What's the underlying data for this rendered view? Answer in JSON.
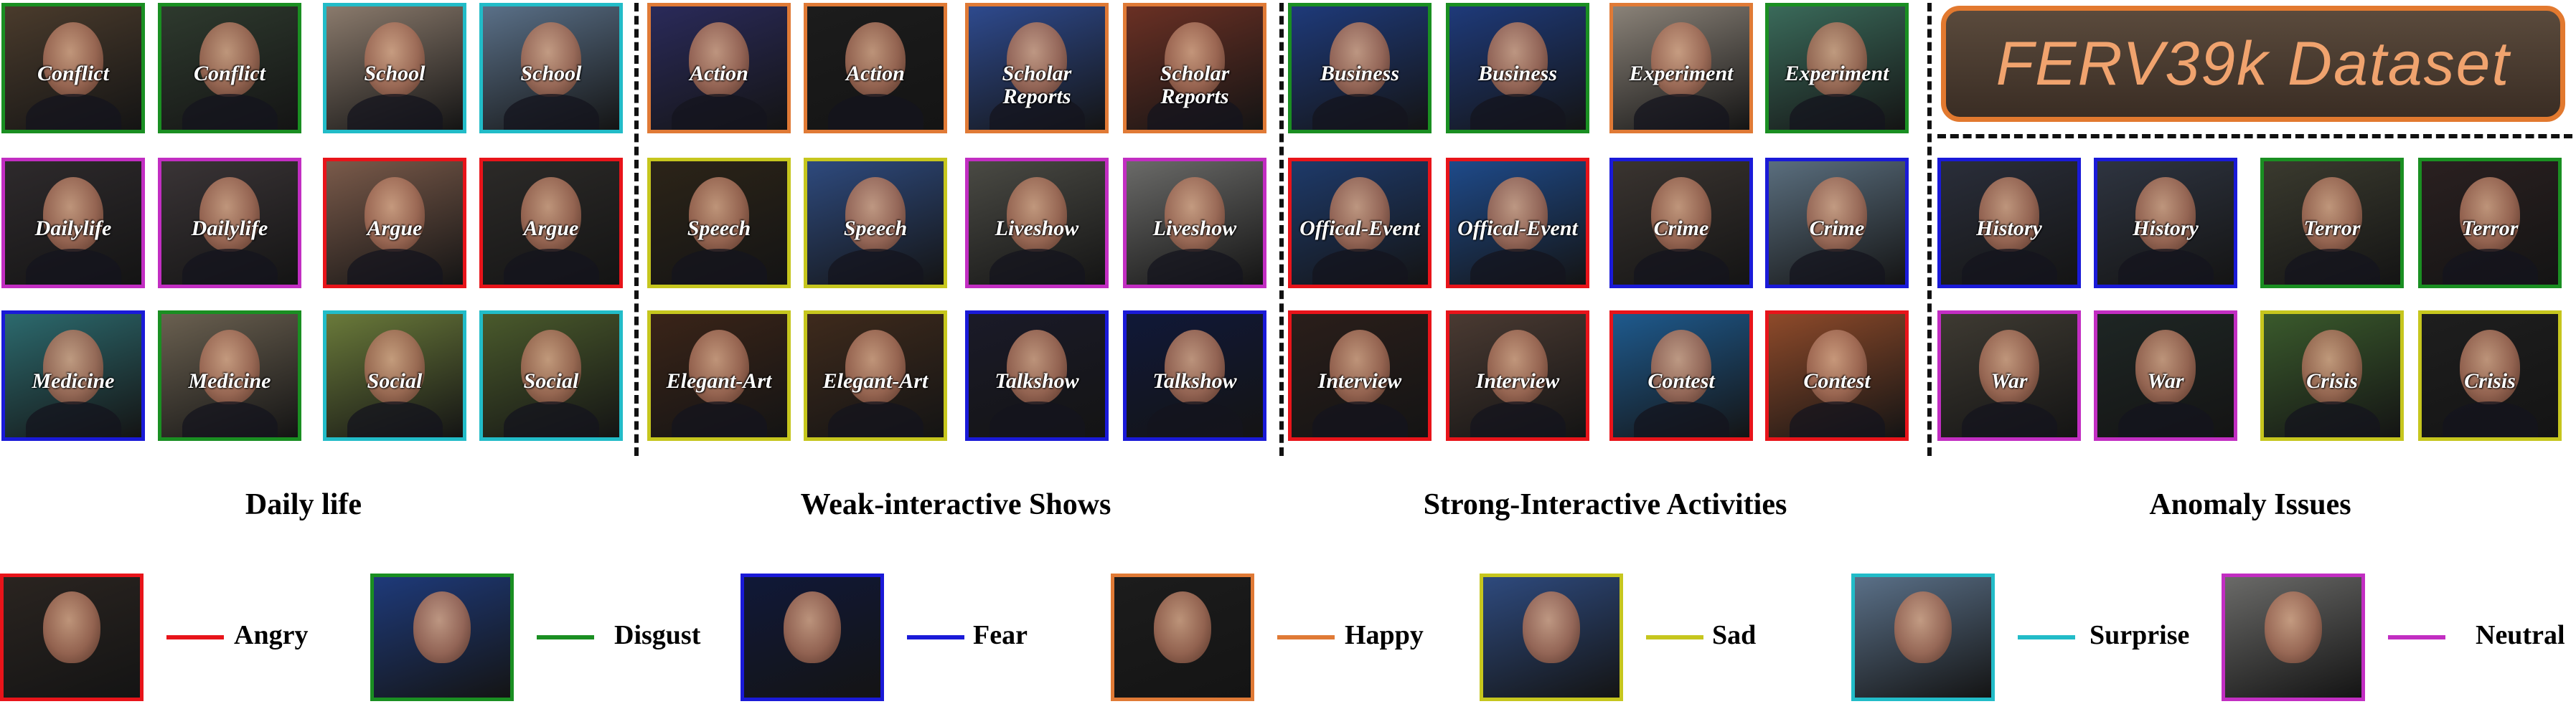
{
  "colors": {
    "angry": "#e8141a",
    "disgust": "#1a8f22",
    "fear": "#1a1ad8",
    "happy": "#e07a36",
    "sad": "#c6c61e",
    "surprise": "#22bcc8",
    "neutral": "#c22ec2"
  },
  "banner": {
    "title": "FERV39k Dataset"
  },
  "sections": [
    {
      "title": "Daily life"
    },
    {
      "title": "Weak-interactive Shows"
    },
    {
      "title": "Strong-Interactive Activities"
    },
    {
      "title": "Anomaly Issues"
    }
  ],
  "tiles": [
    {
      "label": "Conflict",
      "emotion": "disgust",
      "bg": "#4a3b2c"
    },
    {
      "label": "Conflict",
      "emotion": "disgust",
      "bg": "#2e3a2e"
    },
    {
      "label": "School",
      "emotion": "surprise",
      "bg": "#8a7a6c"
    },
    {
      "label": "School",
      "emotion": "surprise",
      "bg": "#5a7088"
    },
    {
      "label": "Dailylife",
      "emotion": "neutral",
      "bg": "#2e2a2c"
    },
    {
      "label": "Dailylife",
      "emotion": "neutral",
      "bg": "#3a3436"
    },
    {
      "label": "Argue",
      "emotion": "angry",
      "bg": "#7a5a4a"
    },
    {
      "label": "Argue",
      "emotion": "angry",
      "bg": "#2c2a28"
    },
    {
      "label": "Medicine",
      "emotion": "fear",
      "bg": "#2c6a6e"
    },
    {
      "label": "Medicine",
      "emotion": "disgust",
      "bg": "#6a6050"
    },
    {
      "label": "Social",
      "emotion": "surprise",
      "bg": "#6a7a3a"
    },
    {
      "label": "Social",
      "emotion": "surprise",
      "bg": "#4a5a2c"
    },
    {
      "label": "Action",
      "emotion": "happy",
      "bg": "#2a2a5a"
    },
    {
      "label": "Action",
      "emotion": "happy",
      "bg": "#1c1c1c"
    },
    {
      "label": "Scholar Reports",
      "emotion": "happy",
      "bg": "#2e4a8e"
    },
    {
      "label": "Scholar Reports",
      "emotion": "happy",
      "bg": "#6a3024"
    },
    {
      "label": "Speech",
      "emotion": "sad",
      "bg": "#2c2418"
    },
    {
      "label": "Speech",
      "emotion": "sad",
      "bg": "#2e4a7e"
    },
    {
      "label": "Liveshow",
      "emotion": "neutral",
      "bg": "#4a4a44"
    },
    {
      "label": "Liveshow",
      "emotion": "neutral",
      "bg": "#6a6a68"
    },
    {
      "label": "Elegant-Art",
      "emotion": "sad",
      "bg": "#3a2418"
    },
    {
      "label": "Elegant-Art",
      "emotion": "sad",
      "bg": "#3e2a1c"
    },
    {
      "label": "Talkshow",
      "emotion": "fear",
      "bg": "#1a1a28"
    },
    {
      "label": "Talkshow",
      "emotion": "fear",
      "bg": "#101838"
    },
    {
      "label": "Business",
      "emotion": "disgust",
      "bg": "#1e3a7a"
    },
    {
      "label": "Business",
      "emotion": "disgust",
      "bg": "#1e3a7a"
    },
    {
      "label": "Experiment",
      "emotion": "happy",
      "bg": "#8a8278"
    },
    {
      "label": "Experiment",
      "emotion": "disgust",
      "bg": "#3a6a5a"
    },
    {
      "label": "Offical-Event",
      "emotion": "angry",
      "bg": "#1e3a6a"
    },
    {
      "label": "Offical-Event",
      "emotion": "angry",
      "bg": "#1e4a8a"
    },
    {
      "label": "Crime",
      "emotion": "fear",
      "bg": "#3a3430"
    },
    {
      "label": "Crime",
      "emotion": "fear",
      "bg": "#5a6e7e"
    },
    {
      "label": "Interview",
      "emotion": "angry",
      "bg": "#2a1e1a"
    },
    {
      "label": "Interview",
      "emotion": "angry",
      "bg": "#4a3a32"
    },
    {
      "label": "Contest",
      "emotion": "angry",
      "bg": "#1e5a8e"
    },
    {
      "label": "Contest",
      "emotion": "angry",
      "bg": "#8e4a2a"
    },
    {
      "label": "History",
      "emotion": "fear",
      "bg": "#2a2e3a"
    },
    {
      "label": "History",
      "emotion": "fear",
      "bg": "#2e3440"
    },
    {
      "label": "Terror",
      "emotion": "disgust",
      "bg": "#3a3a2e"
    },
    {
      "label": "Terror",
      "emotion": "disgust",
      "bg": "#2a2020"
    },
    {
      "label": "War",
      "emotion": "neutral",
      "bg": "#3e3a32"
    },
    {
      "label": "War",
      "emotion": "neutral",
      "bg": "#1e2624"
    },
    {
      "label": "Crisis",
      "emotion": "sad",
      "bg": "#3a5a2c"
    },
    {
      "label": "Crisis",
      "emotion": "sad",
      "bg": "#1e1e1e"
    }
  ],
  "legend": [
    {
      "label": "Angry",
      "emotion": "angry",
      "bg": "#2a2420"
    },
    {
      "label": "Disgust",
      "emotion": "disgust",
      "bg": "#1e3a7a"
    },
    {
      "label": "Fear",
      "emotion": "fear",
      "bg": "#101838"
    },
    {
      "label": "Happy",
      "emotion": "happy",
      "bg": "#1c1c1c"
    },
    {
      "label": "Sad",
      "emotion": "sad",
      "bg": "#2e4a7e"
    },
    {
      "label": "Surprise",
      "emotion": "surprise",
      "bg": "#5a7088"
    },
    {
      "label": "Neutral",
      "emotion": "neutral",
      "bg": "#6a6a68"
    }
  ]
}
